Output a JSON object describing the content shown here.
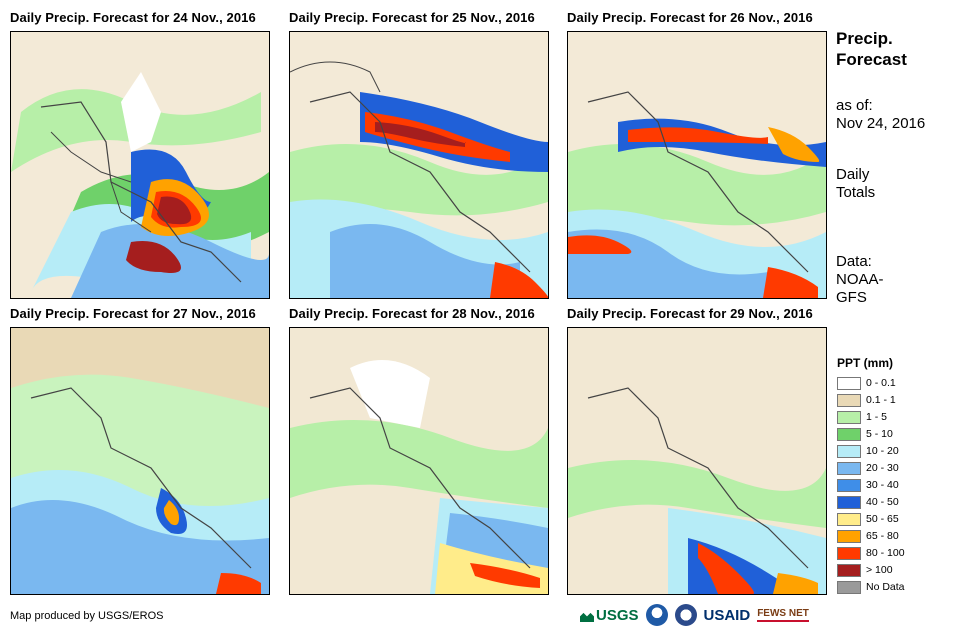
{
  "panels": [
    {
      "title": "Daily Precip. Forecast for 24 Nov., 2016"
    },
    {
      "title": "Daily Precip. Forecast for 25 Nov., 2016"
    },
    {
      "title": "Daily Precip. Forecast for 26 Nov., 2016"
    },
    {
      "title": "Daily Precip. Forecast for 27 Nov., 2016"
    },
    {
      "title": "Daily Precip. Forecast for 28 Nov., 2016"
    },
    {
      "title": "Daily Precip. Forecast for 29 Nov., 2016"
    }
  ],
  "sidebar": {
    "title_line1": "Precip.",
    "title_line2": "Forecast",
    "asof_line1": "as of:",
    "asof_line2": "Nov 24, 2016",
    "totals_line1": "Daily",
    "totals_line2": "Totals",
    "data_line1": "Data:",
    "data_line2": "NOAA-",
    "data_line3": "GFS"
  },
  "legend": {
    "title": "PPT (mm)",
    "items": [
      {
        "label": "0 - 0.1",
        "color": "#ffffff"
      },
      {
        "label": "0.1 - 1",
        "color": "#e9d9b6"
      },
      {
        "label": "1 - 5",
        "color": "#b7efa8"
      },
      {
        "label": "5 - 10",
        "color": "#6fd16a"
      },
      {
        "label": "10 - 20",
        "color": "#b6ecf7"
      },
      {
        "label": "20 - 30",
        "color": "#7ab8f0"
      },
      {
        "label": "30 - 40",
        "color": "#3f8ee8"
      },
      {
        "label": "40 - 50",
        "color": "#2060d8"
      },
      {
        "label": "50 - 65",
        "color": "#ffec8a"
      },
      {
        "label": "65 - 80",
        "color": "#ffa200"
      },
      {
        "label": "80 - 100",
        "color": "#ff3a00"
      },
      {
        "label": "> 100",
        "color": "#a51e1e"
      },
      {
        "label": "No Data",
        "color": "#9a9a9a"
      }
    ]
  },
  "credit": "Map produced by USGS/EROS",
  "logos": {
    "usgs": "USGS",
    "usaid": "USAID",
    "fews": "FEWS NET"
  }
}
